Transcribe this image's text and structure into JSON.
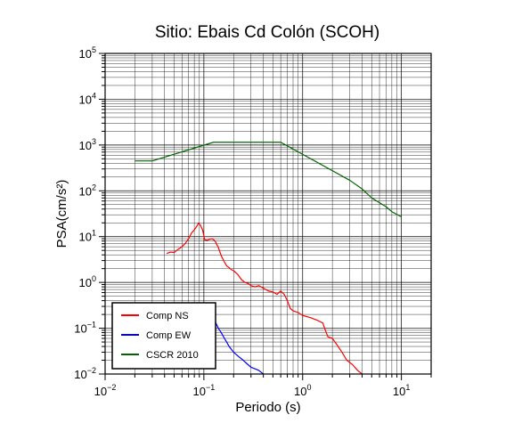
{
  "chart_data": {
    "type": "line",
    "title": "Sitio: Ebais Cd Colón (SCOH)",
    "xlabel": "Periodo (s)",
    "ylabel": "PSA(cm/s²)",
    "x_scale": "log",
    "y_scale": "log",
    "xlim": [
      0.01,
      20
    ],
    "ylim": [
      0.01,
      100000
    ],
    "x_ticks": [
      {
        "value": 0.01,
        "base": "10",
        "exp": "−2"
      },
      {
        "value": 0.1,
        "base": "10",
        "exp": "−1"
      },
      {
        "value": 1,
        "base": "10",
        "exp": "0"
      },
      {
        "value": 10,
        "base": "10",
        "exp": "1"
      }
    ],
    "y_ticks": [
      {
        "value": 0.01,
        "base": "10",
        "exp": "−2"
      },
      {
        "value": 0.1,
        "base": "10",
        "exp": "−1"
      },
      {
        "value": 1,
        "base": "10",
        "exp": "0"
      },
      {
        "value": 10,
        "base": "10",
        "exp": "1"
      },
      {
        "value": 100,
        "base": "10",
        "exp": "2"
      },
      {
        "value": 1000,
        "base": "10",
        "exp": "3"
      },
      {
        "value": 10000,
        "base": "10",
        "exp": "4"
      },
      {
        "value": 100000,
        "base": "10",
        "exp": "5"
      }
    ],
    "grid": true,
    "legend_position": "bottom-left",
    "series": [
      {
        "name": "Comp NS",
        "color": "#ff0000",
        "x": [
          0.042,
          0.046,
          0.05,
          0.055,
          0.06,
          0.065,
          0.07,
          0.075,
          0.08,
          0.085,
          0.088,
          0.092,
          0.097,
          0.102,
          0.108,
          0.115,
          0.122,
          0.13,
          0.14,
          0.15,
          0.16,
          0.17,
          0.18,
          0.19,
          0.2,
          0.22,
          0.24,
          0.26,
          0.28,
          0.3,
          0.33,
          0.36,
          0.4,
          0.45,
          0.5,
          0.55,
          0.6,
          0.65,
          0.7,
          0.75,
          0.8,
          0.9,
          1.0,
          1.2,
          1.4,
          1.6,
          1.7,
          1.8,
          2.0,
          2.2,
          2.5,
          2.8,
          3.2,
          3.6,
          4.0
        ],
        "y": [
          4.3,
          4.6,
          4.5,
          5.3,
          6.0,
          7.2,
          9.0,
          12.0,
          14.0,
          17.0,
          19.5,
          18.0,
          14.0,
          8.5,
          8.3,
          8.8,
          9.0,
          8.0,
          5.8,
          3.8,
          2.9,
          2.3,
          2.1,
          1.9,
          1.8,
          1.5,
          1.15,
          1.0,
          0.95,
          0.85,
          0.8,
          0.85,
          0.75,
          0.65,
          0.62,
          0.55,
          0.65,
          0.55,
          0.4,
          0.27,
          0.24,
          0.22,
          0.19,
          0.17,
          0.15,
          0.13,
          0.09,
          0.065,
          0.06,
          0.045,
          0.03,
          0.02,
          0.016,
          0.012,
          0.01
        ]
      },
      {
        "name": "Comp EW",
        "color": "#0000ff",
        "x": [
          0.1,
          0.105,
          0.11,
          0.115,
          0.12,
          0.13,
          0.14,
          0.15,
          0.16,
          0.17,
          0.18,
          0.2,
          0.22,
          0.25,
          0.28,
          0.3,
          0.33,
          0.36,
          0.4
        ],
        "y": [
          0.13,
          0.12,
          0.12,
          0.135,
          0.15,
          0.14,
          0.1,
          0.08,
          0.062,
          0.05,
          0.04,
          0.03,
          0.025,
          0.02,
          0.016,
          0.014,
          0.013,
          0.012,
          0.01
        ]
      },
      {
        "name": "CSCR 2010",
        "color": "#006400",
        "x": [
          0.02,
          0.03,
          0.125,
          0.6,
          3.0,
          4.0,
          5.0,
          6.0,
          7.0,
          8.0,
          10.0
        ],
        "y": [
          450,
          450,
          1150,
          1150,
          170,
          110,
          70,
          55,
          45,
          35,
          27
        ]
      }
    ]
  }
}
